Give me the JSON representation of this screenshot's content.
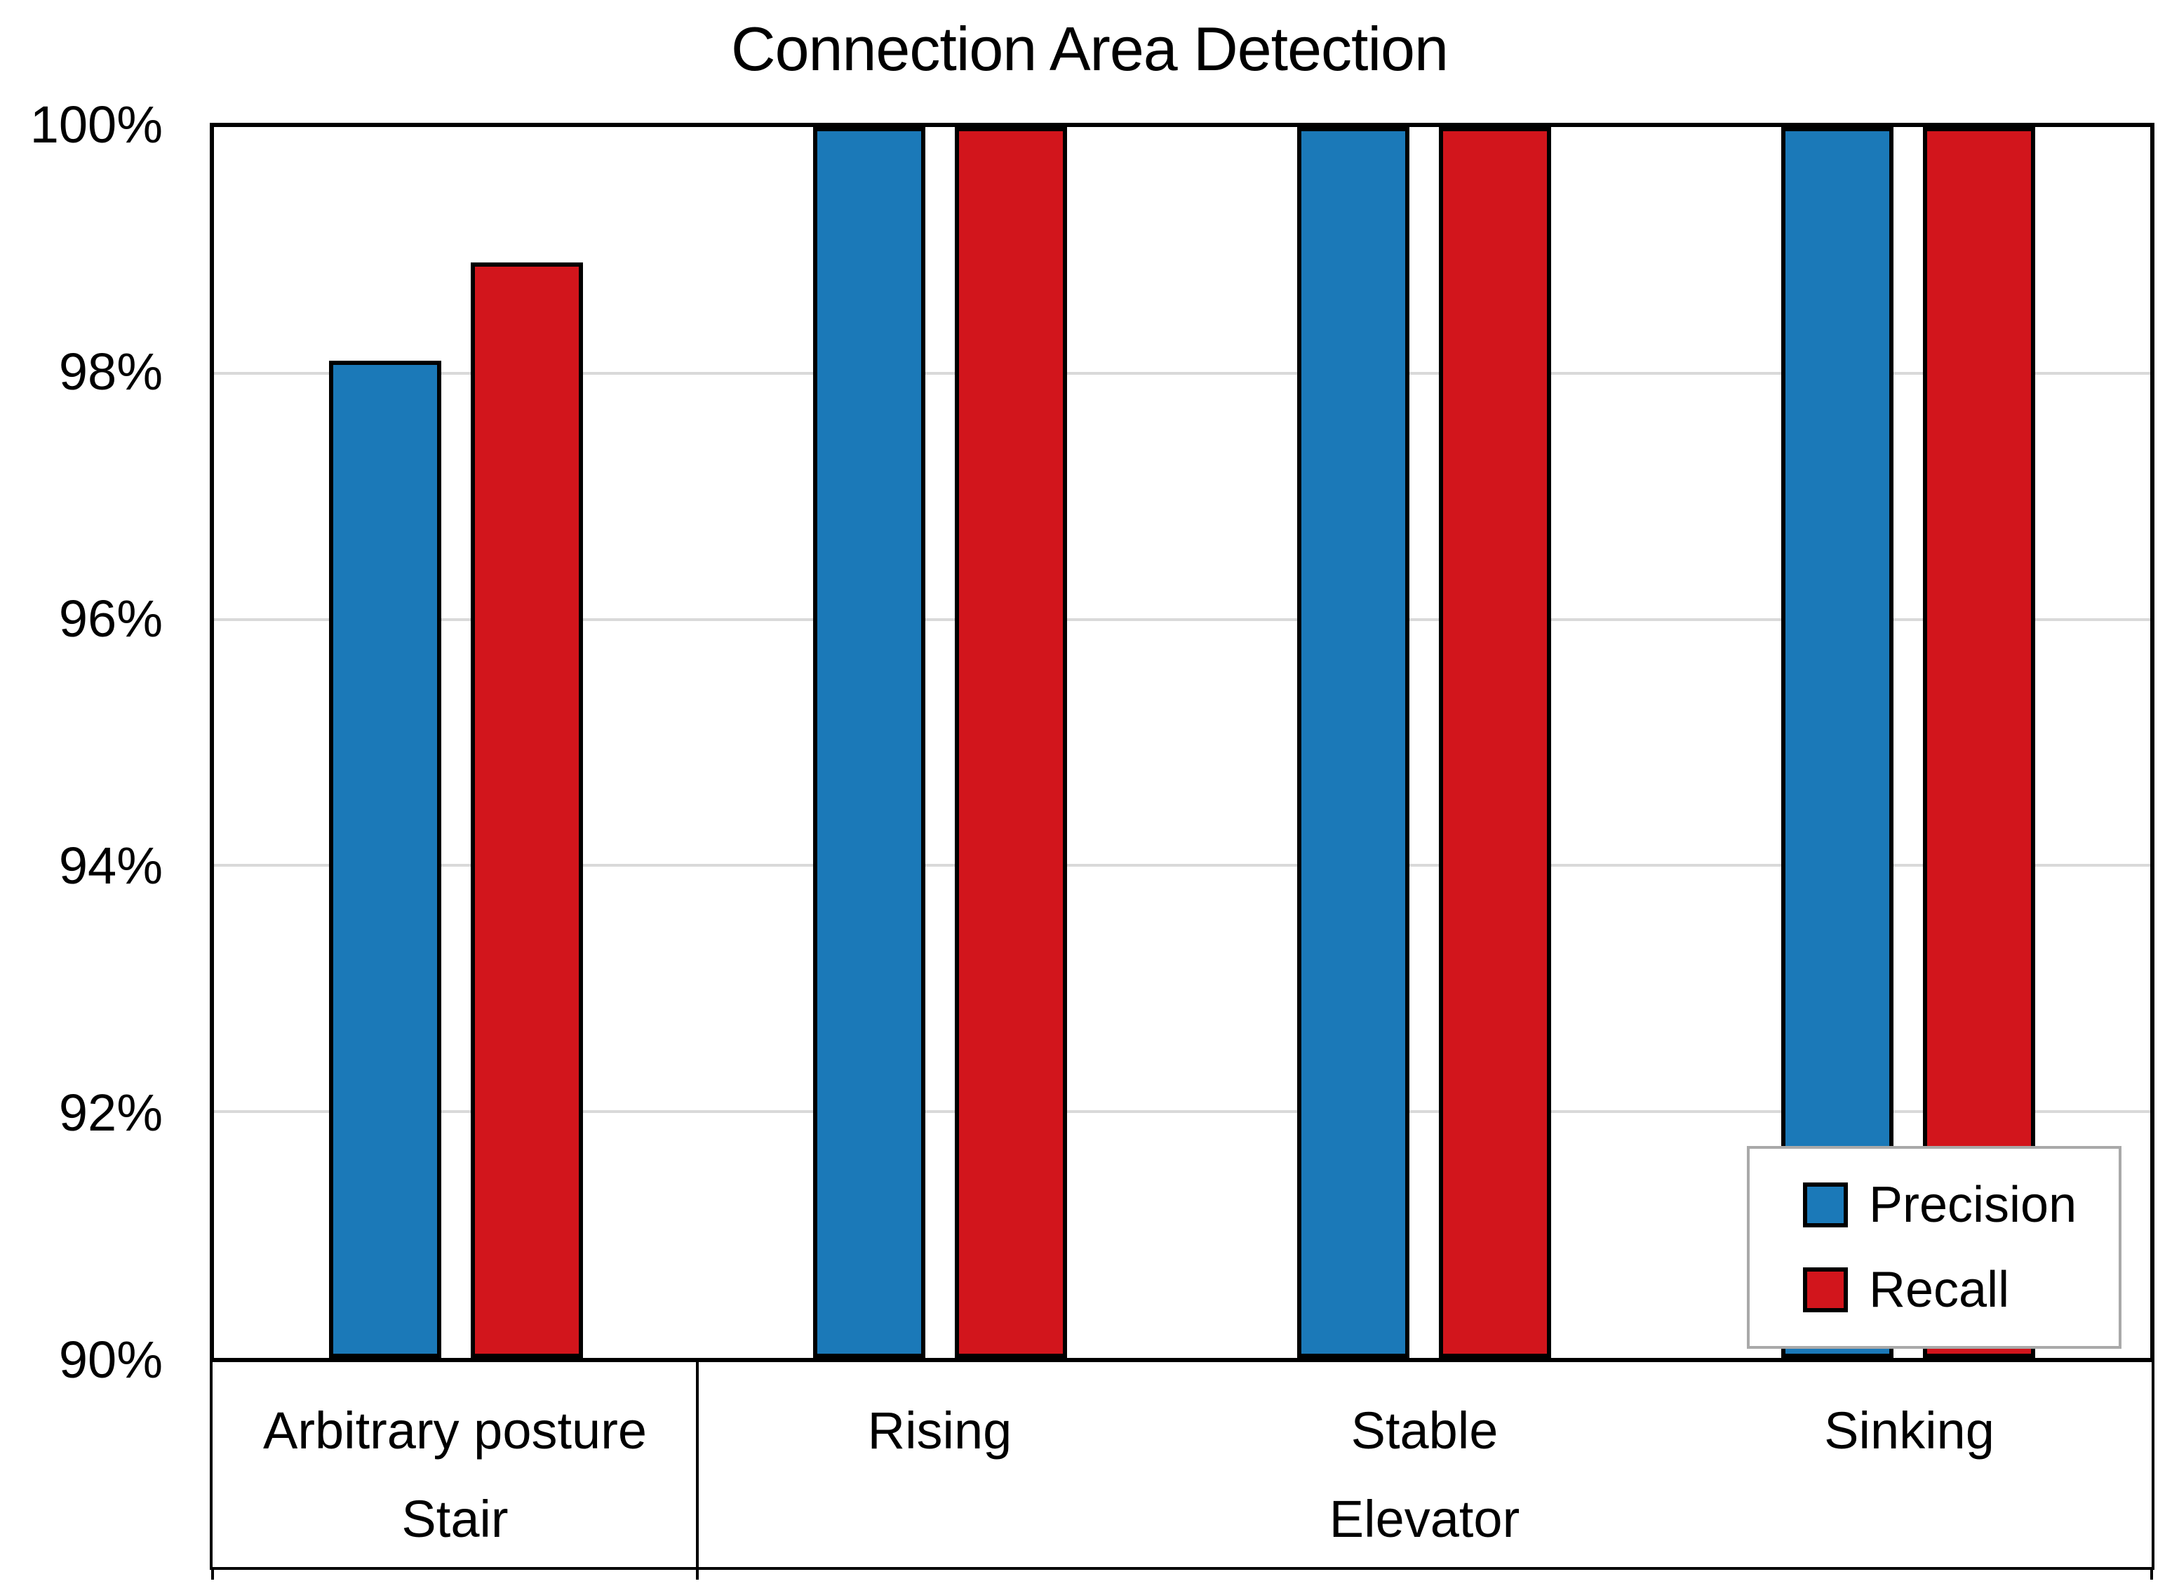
{
  "title": "Connection Area Detection",
  "legend": {
    "precision_label": "Precision",
    "recall_label": "Recall"
  },
  "colors": {
    "precision": "#1B79B8",
    "recall": "#D2151C",
    "gridline": "#D9D9D9",
    "axis": "#000000",
    "legend_border": "#A9A9A9"
  },
  "chart_data": {
    "type": "bar",
    "title": "Connection Area Detection",
    "categories": [
      "Arbitrary posture",
      "Rising",
      "Stable",
      "Sinking"
    ],
    "category_groups": [
      {
        "label": "Stair",
        "start": 0,
        "end": 0
      },
      {
        "label": "Elevator",
        "start": 1,
        "end": 3
      }
    ],
    "series": [
      {
        "name": "Precision",
        "color": "#1B79B8",
        "values": [
          98.1,
          100,
          100,
          100
        ]
      },
      {
        "name": "Recall",
        "color": "#D2151C",
        "values": [
          98.9,
          100,
          100,
          100
        ]
      }
    ],
    "ylabel": "",
    "xlabel": "",
    "ylim": [
      90,
      100
    ],
    "ytick_step": 2,
    "ytick_labels": [
      "100%",
      "98%",
      "96%",
      "94%",
      "92%",
      "90%"
    ],
    "ytick_values": [
      100,
      98,
      96,
      94,
      92,
      90
    ],
    "grid": true,
    "legend_position": "bottom-right",
    "bar_outline": "#000000"
  }
}
